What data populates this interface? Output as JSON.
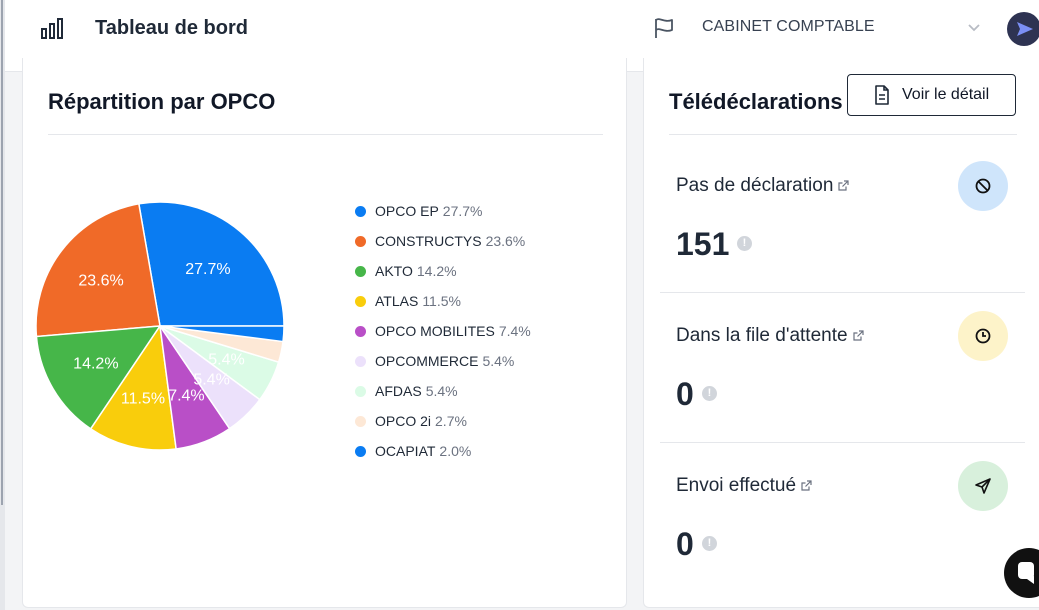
{
  "header": {
    "title": "Tableau de bord",
    "company": "CABINET COMPTABLE",
    "icons": [
      "bar-chart-icon",
      "flag-icon",
      "chevron-down-icon",
      "send-icon"
    ]
  },
  "opco_card": {
    "title": "Répartition par OPCO"
  },
  "chart_data": {
    "type": "pie",
    "title": "Répartition par OPCO",
    "slices": [
      {
        "name": "OPCO EP",
        "value": 27.7,
        "label": "27.7%",
        "color": "#0a7cf2"
      },
      {
        "name": "CONSTRUCTYS",
        "value": 23.6,
        "label": "23.6%",
        "color": "#f06a28"
      },
      {
        "name": "AKTO",
        "value": 14.2,
        "label": "14.2%",
        "color": "#46b649"
      },
      {
        "name": "ATLAS",
        "value": 11.5,
        "label": "11.5%",
        "color": "#f9cd0c"
      },
      {
        "name": "OPCO MOBILITES",
        "value": 7.4,
        "label": "7.4%",
        "color": "#b94fc7"
      },
      {
        "name": "OPCOMMERCE",
        "value": 5.4,
        "label": "5.4%",
        "color": "#ece1fb"
      },
      {
        "name": "AFDAS",
        "value": 5.4,
        "label": "5.4%",
        "color": "#dbfbe6"
      },
      {
        "name": "OPCO 2i",
        "value": 2.7,
        "label": "",
        "color": "#fde8d6"
      },
      {
        "name": "OCAPIAT",
        "value": 2.0,
        "label": "",
        "color": "#0a7cf2"
      }
    ],
    "legend_position": "right"
  },
  "declarations": {
    "title": "Télédéclarations",
    "detail_button": "Voir le détail",
    "stats": [
      {
        "label": "Pas de déclaration",
        "value": "151",
        "icon": "ban-icon",
        "color": "#cfe5fb"
      },
      {
        "label": "Dans la file d'attente",
        "value": "0",
        "icon": "clock-icon",
        "color": "#fdf3c9"
      },
      {
        "label": "Envoi effectué",
        "value": "0",
        "icon": "send-icon",
        "color": "#d8f0dc"
      }
    ]
  }
}
